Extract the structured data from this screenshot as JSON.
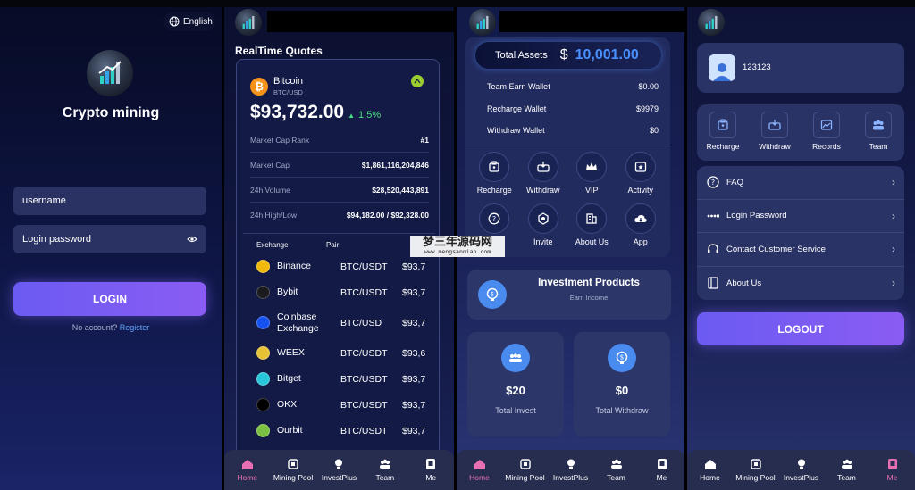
{
  "login": {
    "language_label": "English",
    "app_name": "Crypto mining",
    "username_placeholder": "username",
    "password_placeholder": "Login password",
    "login_button": "LOGIN",
    "no_account_text": "No account?",
    "register_link": "Register"
  },
  "quotes": {
    "title": "RealTime Quotes",
    "coin_name": "Bitcoin",
    "coin_pair": "BTC/USD",
    "price": "$93,732.00",
    "change": "1.5%",
    "stats": [
      {
        "label": "Market Cap Rank",
        "value": "#1"
      },
      {
        "label": "Market Cap",
        "value": "$1,861,116,204,846"
      },
      {
        "label": "24h Volume",
        "value": "$28,520,443,891"
      },
      {
        "label": "24h High/Low",
        "value": "$94,182.00 / $92,328.00"
      }
    ],
    "table_headers": {
      "exchange": "Exchange",
      "pair": "Pair"
    },
    "exchanges": [
      {
        "name": "Binance",
        "pair": "BTC/USDT",
        "price": "$93,7",
        "color": "#f0b90b",
        "icon": "binance-icon"
      },
      {
        "name": "Bybit",
        "pair": "BTC/USDT",
        "price": "$93,7",
        "color": "#1b1b1f",
        "icon": "bybit-icon"
      },
      {
        "name": "Coinbase Exchange",
        "pair": "BTC/USD",
        "price": "$93,7",
        "color": "#1652f0",
        "icon": "coinbase-icon"
      },
      {
        "name": "WEEX",
        "pair": "BTC/USDT",
        "price": "$93,6",
        "color": "#e8c235",
        "icon": "weex-icon"
      },
      {
        "name": "Bitget",
        "pair": "BTC/USDT",
        "price": "$93,7",
        "color": "#27c6d9",
        "icon": "bitget-icon"
      },
      {
        "name": "OKX",
        "pair": "BTC/USDT",
        "price": "$93,7",
        "color": "#000000",
        "icon": "okx-icon"
      },
      {
        "name": "Ourbit",
        "pair": "BTC/USDT",
        "price": "$93,7",
        "color": "#7bc043",
        "icon": "ourbit-icon"
      }
    ]
  },
  "assets": {
    "total_label": "Total Assets",
    "currency": "$",
    "total_value": "10,001.00",
    "wallets": [
      {
        "label": "Team Earn Wallet",
        "value": "$0.00"
      },
      {
        "label": "Recharge Wallet",
        "value": "$9979"
      },
      {
        "label": "Withdraw Wallet",
        "value": "$0"
      }
    ],
    "actions": [
      {
        "label": "Recharge",
        "icon": "recharge-icon"
      },
      {
        "label": "Withdraw",
        "icon": "withdraw-icon"
      },
      {
        "label": "VIP",
        "icon": "vip-crown-icon"
      },
      {
        "label": "Activity",
        "icon": "activity-icon"
      },
      {
        "label": "",
        "icon": "help-icon"
      },
      {
        "label": "Invite",
        "icon": "invite-icon"
      },
      {
        "label": "About Us",
        "icon": "about-building-icon"
      },
      {
        "label": "App",
        "icon": "app-download-icon"
      }
    ],
    "investment_title": "Investment Products",
    "investment_subtitle": "Earn Income",
    "invest_amount": "$20",
    "invest_label": "Total Invest",
    "withdraw_amount": "$0",
    "withdraw_label": "Total Withdraw"
  },
  "me": {
    "user_id": "123123",
    "quick_actions": [
      {
        "label": "Recharge",
        "icon": "recharge-icon"
      },
      {
        "label": "Withdraw",
        "icon": "withdraw-icon"
      },
      {
        "label": "Records",
        "icon": "records-icon"
      },
      {
        "label": "Team",
        "icon": "team-icon"
      }
    ],
    "menu": [
      {
        "label": "FAQ",
        "icon": "faq-icon"
      },
      {
        "label": "Login Password",
        "icon": "password-icon"
      },
      {
        "label": "Contact Customer Service",
        "icon": "headset-icon"
      },
      {
        "label": "About Us",
        "icon": "book-icon"
      }
    ],
    "logout_button": "LOGOUT"
  },
  "nav": [
    "Home",
    "Mining Pool",
    "InvestPlus",
    "Team",
    "Me"
  ],
  "watermark": {
    "title": "梦三年源码网",
    "url": "www.mengsannian.com"
  },
  "colors": {
    "accent": "#7a5cf0",
    "active_nav": "#e86fb1",
    "positive": "#4ade80",
    "asset_value": "#4a90ff"
  }
}
